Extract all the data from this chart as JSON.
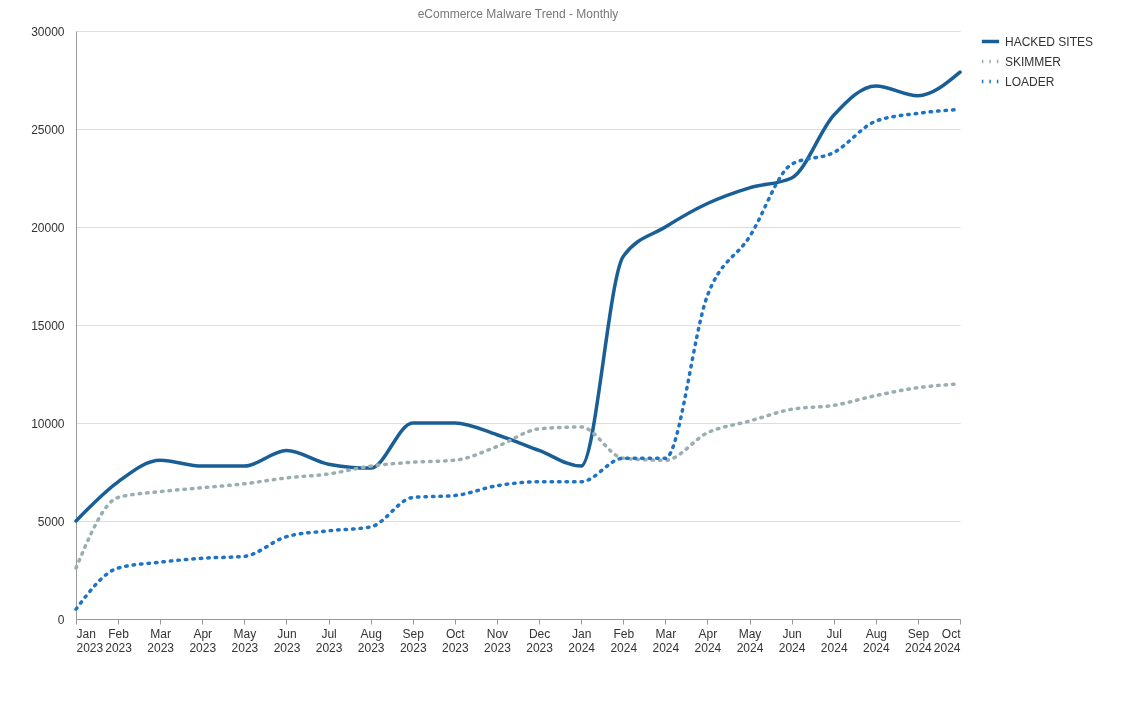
{
  "chart_data": {
    "type": "line",
    "title": "eCommerce Malware Trend - Monthly",
    "categories": [
      "Jan 2023",
      "Feb 2023",
      "Mar 2023",
      "Apr 2023",
      "May 2023",
      "Jun 2023",
      "Jul 2023",
      "Aug 2023",
      "Sep 2023",
      "Oct 2023",
      "Nov 2023",
      "Dec 2023",
      "Jan 2024",
      "Feb 2024",
      "Mar 2024",
      "Apr 2024",
      "May 2024",
      "Jun 2024",
      "Jul 2024",
      "Aug 2024",
      "Sep 2024",
      "Oct 2024"
    ],
    "series": [
      {
        "name": "HACKED SITES",
        "color": "#1a5e96",
        "line_style": "solid",
        "values": [
          5000,
          7000,
          8100,
          7800,
          7800,
          8600,
          7900,
          7700,
          10000,
          10000,
          9400,
          8600,
          7800,
          18500,
          20000,
          21200,
          22000,
          22500,
          25700,
          27200,
          26700,
          27900
        ]
      },
      {
        "name": "SKIMMER",
        "color": "#9aaeb0",
        "line_style": "dotted",
        "values": [
          2600,
          6200,
          6500,
          6700,
          6900,
          7200,
          7400,
          7800,
          8000,
          8100,
          8800,
          9700,
          9800,
          8200,
          8100,
          9500,
          10100,
          10700,
          10900,
          11400,
          11800,
          12000
        ]
      },
      {
        "name": "LOADER",
        "color": "#1f73c4",
        "line_style": "dotted",
        "values": [
          500,
          2600,
          2900,
          3100,
          3200,
          4200,
          4500,
          4700,
          6200,
          6300,
          6800,
          7000,
          7000,
          8200,
          8200,
          16500,
          19500,
          23200,
          23800,
          25400,
          25800,
          26000
        ]
      }
    ],
    "ylim": [
      0,
      30000
    ],
    "yticks": [
      0,
      5000,
      10000,
      15000,
      20000,
      25000,
      30000
    ],
    "grid": "y",
    "legend": "right",
    "marker": "none"
  }
}
